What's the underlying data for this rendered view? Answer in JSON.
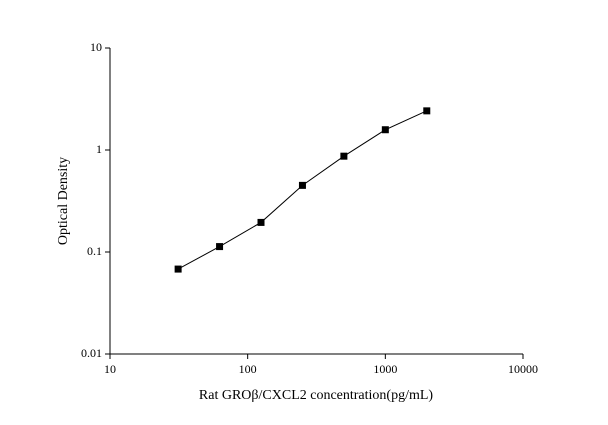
{
  "chart_data": {
    "type": "line",
    "x_label": "Rat GROβ/CXCL2 concentration(pg/mL)",
    "y_label": "Optical Density",
    "x": [
      31.25,
      62.5,
      125,
      250,
      500,
      1000,
      2000
    ],
    "values": [
      0.068,
      0.113,
      0.195,
      0.45,
      0.87,
      1.58,
      2.42
    ],
    "color": "#000000",
    "marker": "square",
    "xscale": "log",
    "yscale": "log",
    "xlim": [
      10,
      10000
    ],
    "xticks": [
      10,
      100,
      1000,
      10000
    ],
    "ylim": [
      0.01,
      10
    ],
    "yticks": [
      0.01,
      0.1,
      1,
      10
    ]
  }
}
